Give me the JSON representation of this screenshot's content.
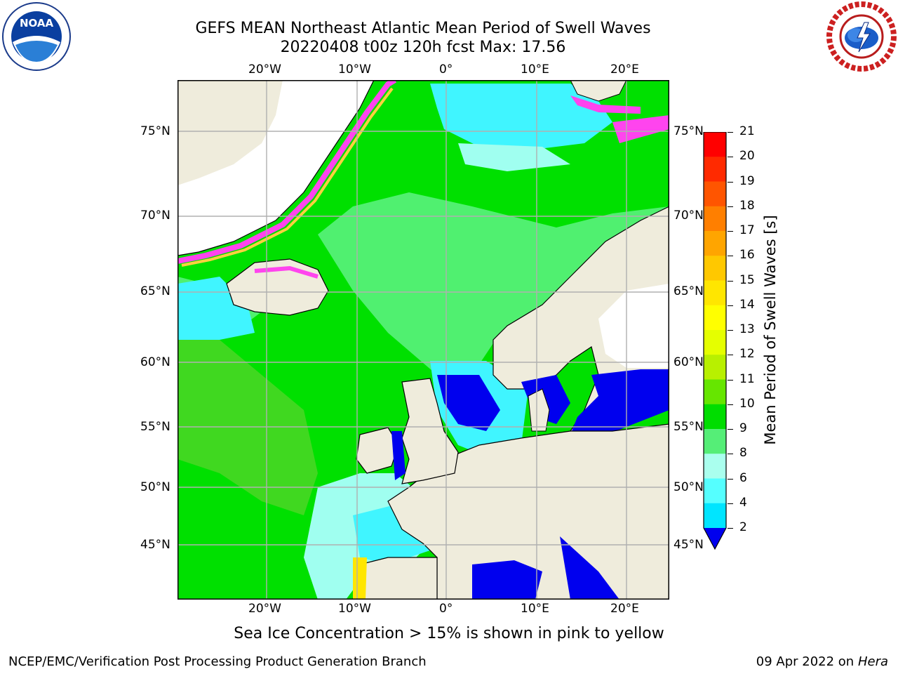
{
  "header": {
    "title_line1": "GEFS MEAN Northeast Atlantic Mean Period of Swell Waves",
    "title_line2": "20220408 t00z 120h fcst   Max: 17.56"
  },
  "logos": {
    "noaa_badge_text": "NOAA",
    "noaa_ring_text": "NATIONAL OCEANIC AND ATMOSPHERIC ADMINISTRATION · U.S. DEPARTMENT OF COMMERCE",
    "nws_ring_text": "NATIONAL WEATHER SERVICE"
  },
  "map": {
    "longitude_labels": [
      "20°W",
      "10°W",
      "0°",
      "10°E",
      "20°E"
    ],
    "latitude_labels": [
      "75°N",
      "70°N",
      "65°N",
      "60°N",
      "55°N",
      "50°N",
      "45°N"
    ],
    "colors": {
      "ocean_low": "#0000ee",
      "ocean_4_6": "#00e5ff",
      "ocean_6_8": "#40f5ff",
      "ocean_8_9": "#a0fff0",
      "ocean_9_10": "#50f070",
      "ocean_10_11": "#00e000",
      "ocean_11_12": "#40d820",
      "land": "#efecdc",
      "sea_ice": "#ff44ee",
      "grid": "#b0b0b0"
    }
  },
  "colorbar": {
    "label": "Mean Period of Swell Waves [s]",
    "ticks": [
      "21",
      "20",
      "19",
      "18",
      "17",
      "16",
      "15",
      "14",
      "13",
      "12",
      "11",
      "10",
      "9",
      "8",
      "6",
      "4",
      "2"
    ],
    "bin_colors": [
      "#ff0000",
      "#ff2a00",
      "#ff5500",
      "#ff7f00",
      "#ffa500",
      "#ffc800",
      "#ffe600",
      "#ffff00",
      "#e5ff00",
      "#b8f000",
      "#66e600",
      "#00dd00",
      "#55ee77",
      "#aaffee",
      "#55ffff",
      "#00e5ff",
      "#0077ff"
    ],
    "under_color": "#0000ee"
  },
  "note": "Sea Ice Concentration > 15% is shown in pink to yellow",
  "footer": {
    "left": "NCEP/EMC/Verification Post Processing Product Generation Branch",
    "date": "09 Apr 2022 on ",
    "machine": "Hera"
  }
}
